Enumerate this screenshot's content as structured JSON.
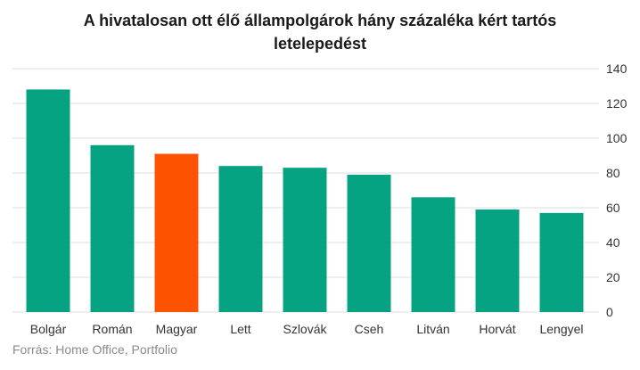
{
  "chart_data": {
    "type": "bar",
    "title_lines": [
      "A hivatalosan ott élő állampolgárok hány százaléka kért tartós",
      "letelepedést"
    ],
    "xlabel": "",
    "ylabel": "",
    "categories": [
      "Bolgár",
      "Román",
      "Magyar",
      "Lett",
      "Szlovák",
      "Cseh",
      "Litván",
      "Horvát",
      "Lengyel"
    ],
    "values": [
      128,
      96,
      91,
      84,
      83,
      79,
      66,
      59,
      57
    ],
    "highlight_category": "Magyar",
    "ylim": [
      0,
      140
    ],
    "yticks": [
      0,
      20,
      40,
      60,
      80,
      100,
      120,
      140
    ],
    "y_axis_side": "right",
    "grid": true,
    "colors": {
      "bar": "#05a382",
      "highlight": "#fd5300",
      "grid": "#dcdcdc"
    }
  },
  "source": "Forrás: Home Office, Portfolio"
}
